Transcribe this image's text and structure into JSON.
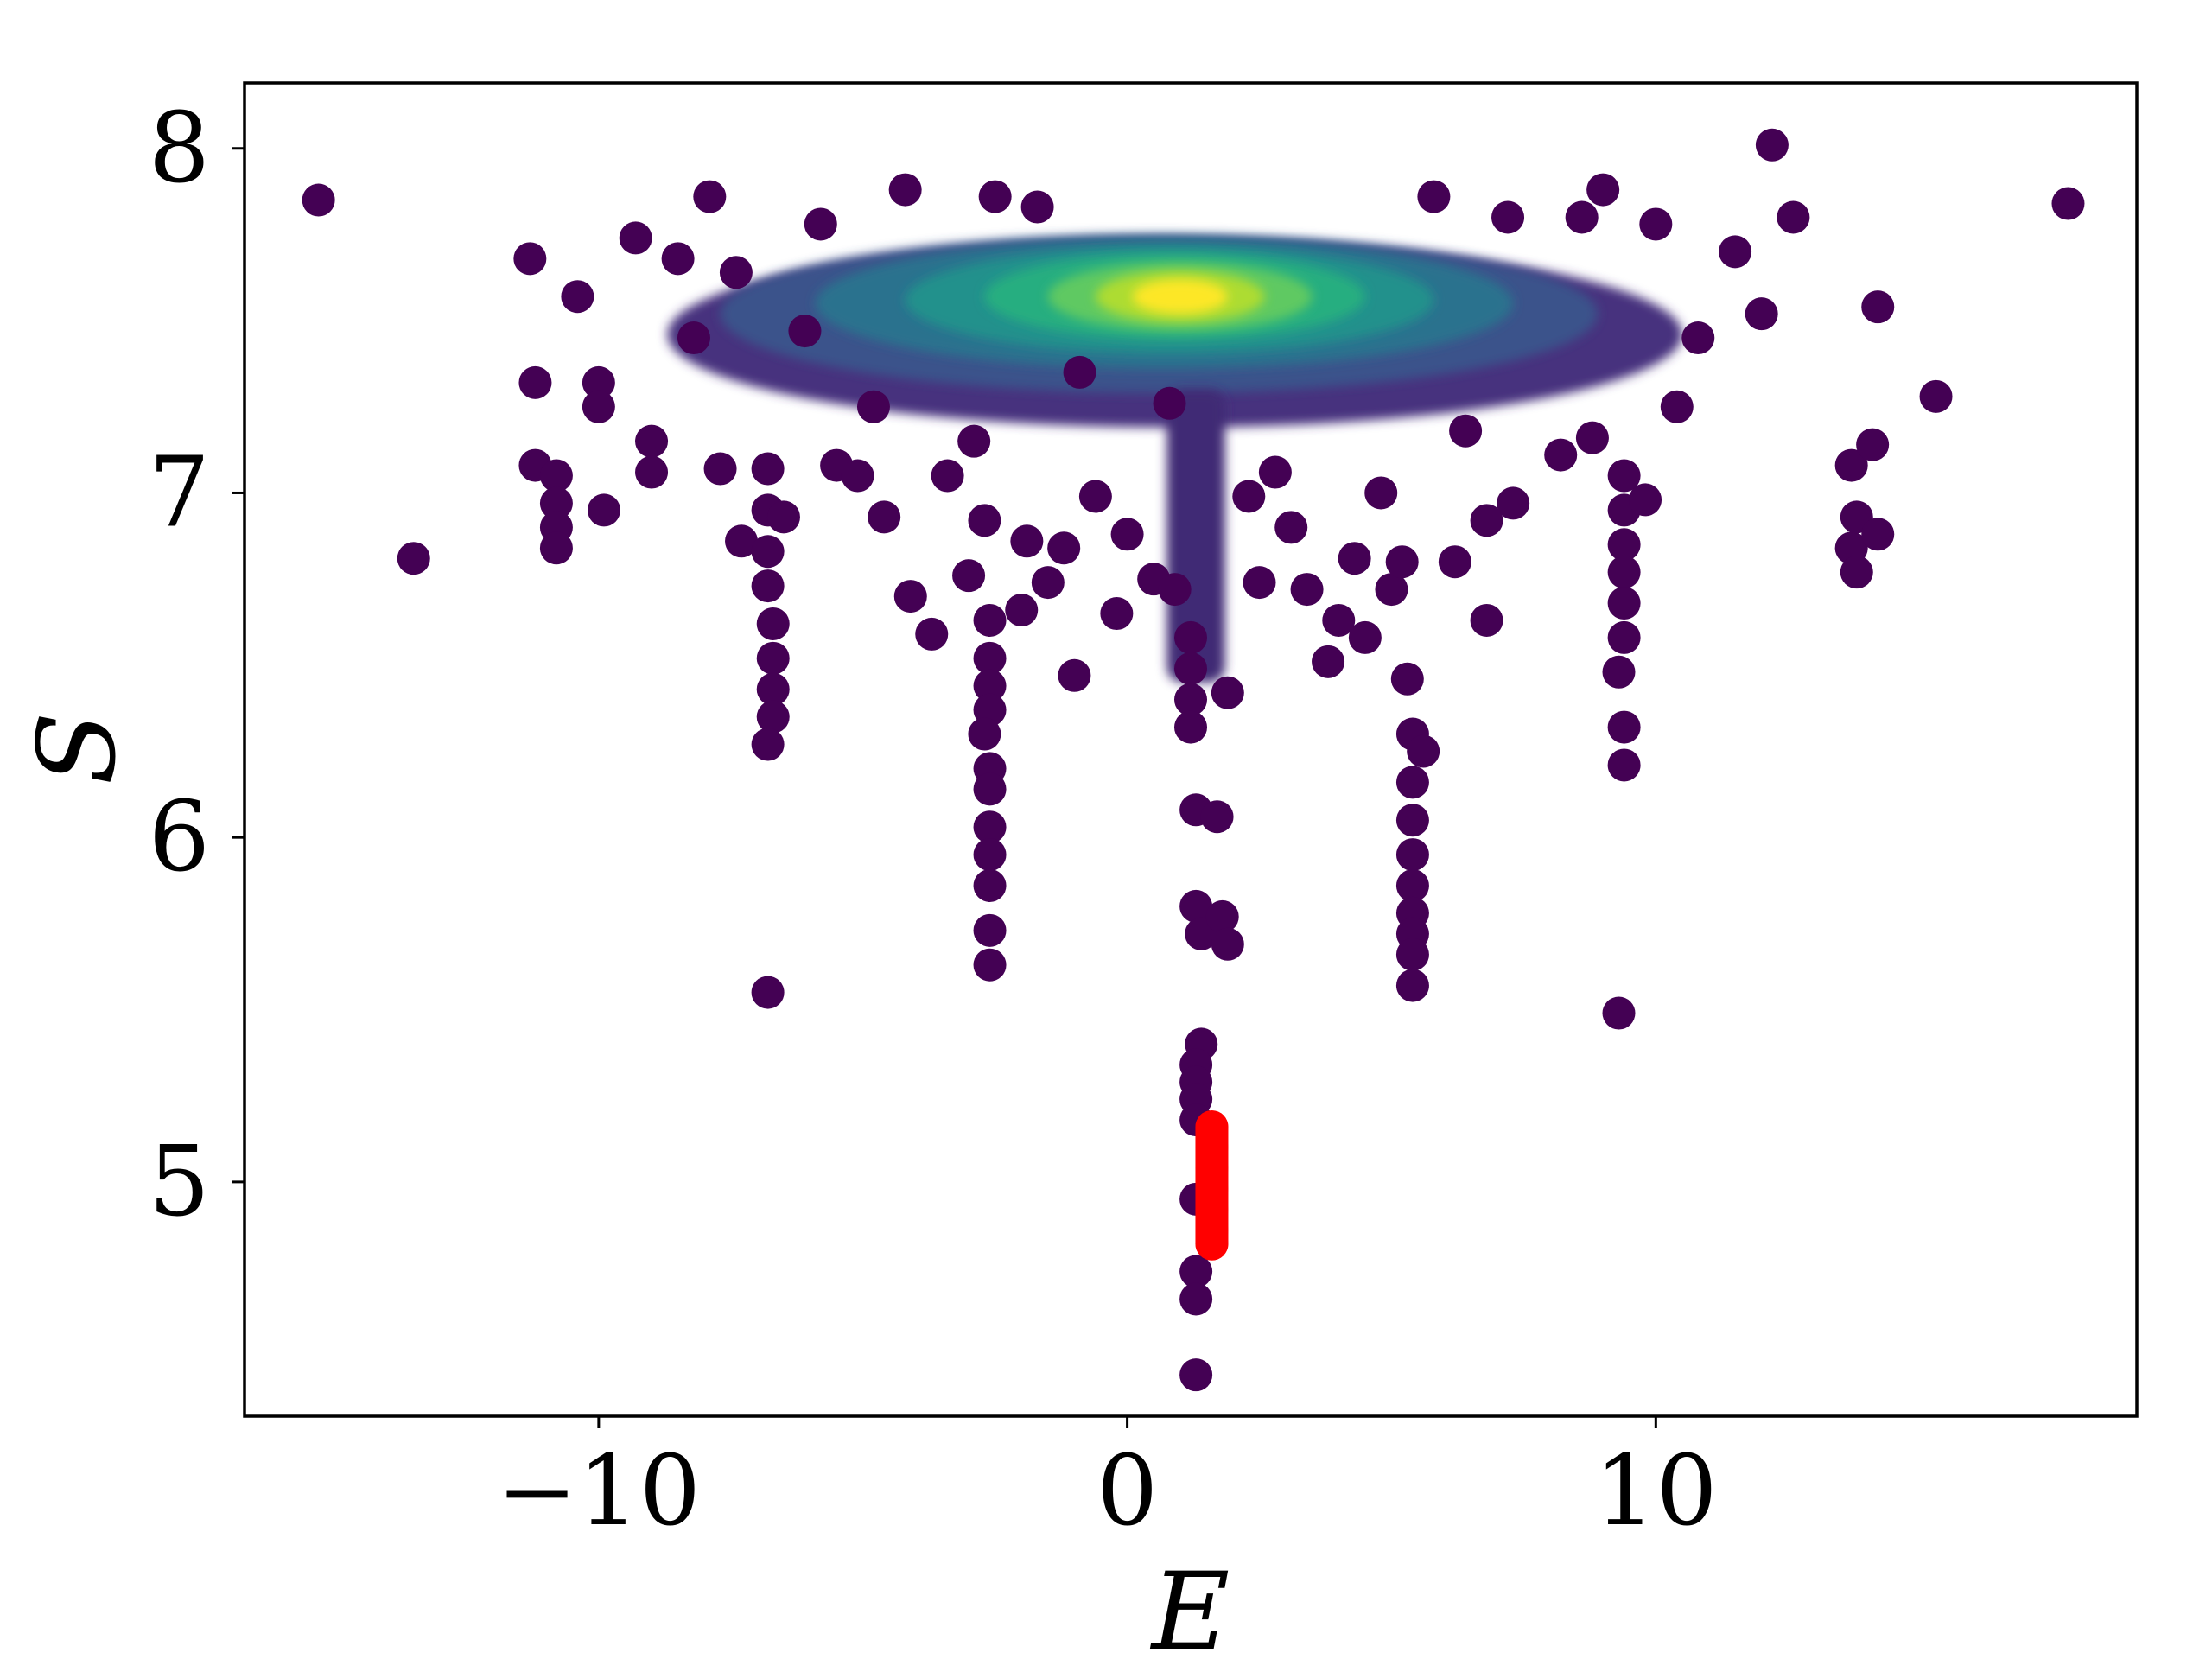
{
  "chart_data": {
    "type": "scatter",
    "title": "",
    "xlabel": "E",
    "ylabel": "S",
    "xlim": [
      -16.7,
      19.1
    ],
    "ylim": [
      4.32,
      8.19
    ],
    "xticks": [
      -10,
      0,
      10
    ],
    "xtick_labels": [
      "−10",
      "0",
      "10"
    ],
    "yticks": [
      5,
      6,
      7,
      8
    ],
    "ytick_labels": [
      "5",
      "6",
      "7",
      "8"
    ],
    "grid": false,
    "legend": "none",
    "colormap": "viridis",
    "colors": {
      "highlight": "#ff0000",
      "axis": "#000000",
      "background": "#ffffff"
    },
    "series": [
      {
        "values": [
          {
            "x": -15.3,
            "y": 7.85
          },
          {
            "x": -13.5,
            "y": 6.81
          },
          {
            "x": -11.3,
            "y": 7.68
          },
          {
            "x": -11.2,
            "y": 7.32
          },
          {
            "x": -11.2,
            "y": 7.08
          },
          {
            "x": -10.8,
            "y": 7.05
          },
          {
            "x": -10.8,
            "y": 6.97
          },
          {
            "x": -10.8,
            "y": 6.9
          },
          {
            "x": -10.8,
            "y": 6.84
          },
          {
            "x": -10.4,
            "y": 7.57
          },
          {
            "x": -10.0,
            "y": 7.32
          },
          {
            "x": -10.0,
            "y": 7.25
          },
          {
            "x": -9.9,
            "y": 6.95
          },
          {
            "x": -9.3,
            "y": 7.74
          },
          {
            "x": -9.0,
            "y": 7.15
          },
          {
            "x": -9.0,
            "y": 7.06
          },
          {
            "x": -8.5,
            "y": 7.68
          },
          {
            "x": -8.2,
            "y": 7.45
          },
          {
            "x": -7.9,
            "y": 7.86
          },
          {
            "x": -7.7,
            "y": 7.07
          },
          {
            "x": -7.4,
            "y": 7.64
          },
          {
            "x": -7.3,
            "y": 6.86
          },
          {
            "x": -6.8,
            "y": 7.07
          },
          {
            "x": -6.8,
            "y": 6.95
          },
          {
            "x": -6.8,
            "y": 6.83
          },
          {
            "x": -6.8,
            "y": 6.73
          },
          {
            "x": -6.7,
            "y": 6.62
          },
          {
            "x": -6.7,
            "y": 6.52
          },
          {
            "x": -6.7,
            "y": 6.43
          },
          {
            "x": -6.7,
            "y": 6.35
          },
          {
            "x": -6.8,
            "y": 6.27
          },
          {
            "x": -6.8,
            "y": 5.55
          },
          {
            "x": -6.5,
            "y": 6.93
          },
          {
            "x": -6.1,
            "y": 7.47
          },
          {
            "x": -5.8,
            "y": 7.78
          },
          {
            "x": -5.5,
            "y": 7.08
          },
          {
            "x": -5.1,
            "y": 7.05
          },
          {
            "x": -4.8,
            "y": 7.25
          },
          {
            "x": -4.6,
            "y": 6.93
          },
          {
            "x": -4.2,
            "y": 7.88
          },
          {
            "x": -4.1,
            "y": 6.7
          },
          {
            "x": -3.7,
            "y": 6.59
          },
          {
            "x": -3.4,
            "y": 7.05
          },
          {
            "x": -3.0,
            "y": 6.76
          },
          {
            "x": -2.9,
            "y": 7.15
          },
          {
            "x": -2.7,
            "y": 6.92
          },
          {
            "x": -2.6,
            "y": 6.63
          },
          {
            "x": -2.6,
            "y": 6.52
          },
          {
            "x": -2.6,
            "y": 6.44
          },
          {
            "x": -2.6,
            "y": 6.37
          },
          {
            "x": -2.7,
            "y": 6.3
          },
          {
            "x": -2.6,
            "y": 6.2
          },
          {
            "x": -2.6,
            "y": 6.14
          },
          {
            "x": -2.6,
            "y": 6.03
          },
          {
            "x": -2.6,
            "y": 5.95
          },
          {
            "x": -2.6,
            "y": 5.86
          },
          {
            "x": -2.6,
            "y": 5.73
          },
          {
            "x": -2.6,
            "y": 5.63
          },
          {
            "x": -2.5,
            "y": 7.86
          },
          {
            "x": -2.0,
            "y": 6.66
          },
          {
            "x": -1.9,
            "y": 6.86
          },
          {
            "x": -1.7,
            "y": 7.83
          },
          {
            "x": -1.5,
            "y": 6.74
          },
          {
            "x": -1.2,
            "y": 6.84
          },
          {
            "x": -1.0,
            "y": 6.47
          },
          {
            "x": -0.9,
            "y": 7.35
          },
          {
            "x": -0.6,
            "y": 6.99
          },
          {
            "x": -0.2,
            "y": 6.65
          },
          {
            "x": 0.0,
            "y": 6.88
          },
          {
            "x": 0.5,
            "y": 6.75
          },
          {
            "x": 0.8,
            "y": 7.26
          },
          {
            "x": 0.9,
            "y": 6.72
          },
          {
            "x": 1.2,
            "y": 6.58
          },
          {
            "x": 1.2,
            "y": 6.49
          },
          {
            "x": 1.2,
            "y": 6.4
          },
          {
            "x": 1.2,
            "y": 6.32
          },
          {
            "x": 1.3,
            "y": 6.08
          },
          {
            "x": 1.3,
            "y": 5.8
          },
          {
            "x": 1.4,
            "y": 5.72
          },
          {
            "x": 1.7,
            "y": 6.06
          },
          {
            "x": 1.8,
            "y": 5.77
          },
          {
            "x": 1.9,
            "y": 5.69
          },
          {
            "x": 1.9,
            "y": 6.42
          },
          {
            "x": 1.4,
            "y": 5.4
          },
          {
            "x": 1.3,
            "y": 5.34
          },
          {
            "x": 1.3,
            "y": 5.29
          },
          {
            "x": 1.3,
            "y": 5.24
          },
          {
            "x": 1.3,
            "y": 5.18
          },
          {
            "x": 1.3,
            "y": 4.95
          },
          {
            "x": 1.3,
            "y": 4.74
          },
          {
            "x": 1.3,
            "y": 4.66
          },
          {
            "x": 1.3,
            "y": 4.44
          },
          {
            "x": 2.3,
            "y": 6.99
          },
          {
            "x": 2.5,
            "y": 6.74
          },
          {
            "x": 2.8,
            "y": 7.06
          },
          {
            "x": 3.1,
            "y": 6.9
          },
          {
            "x": 3.4,
            "y": 6.72
          },
          {
            "x": 3.8,
            "y": 6.51
          },
          {
            "x": 4.0,
            "y": 6.63
          },
          {
            "x": 4.3,
            "y": 6.81
          },
          {
            "x": 4.5,
            "y": 6.58
          },
          {
            "x": 4.8,
            "y": 7.0
          },
          {
            "x": 5.0,
            "y": 6.72
          },
          {
            "x": 5.3,
            "y": 6.46
          },
          {
            "x": 5.4,
            "y": 6.3
          },
          {
            "x": 5.4,
            "y": 6.16
          },
          {
            "x": 5.4,
            "y": 6.05
          },
          {
            "x": 5.4,
            "y": 5.95
          },
          {
            "x": 5.4,
            "y": 5.86
          },
          {
            "x": 5.4,
            "y": 5.78
          },
          {
            "x": 5.4,
            "y": 5.72
          },
          {
            "x": 5.4,
            "y": 5.66
          },
          {
            "x": 5.4,
            "y": 5.57
          },
          {
            "x": 5.2,
            "y": 6.8
          },
          {
            "x": 5.6,
            "y": 6.25
          },
          {
            "x": 5.8,
            "y": 7.86
          },
          {
            "x": 6.2,
            "y": 6.8
          },
          {
            "x": 6.4,
            "y": 7.18
          },
          {
            "x": 6.8,
            "y": 6.92
          },
          {
            "x": 6.8,
            "y": 6.63
          },
          {
            "x": 7.2,
            "y": 7.8
          },
          {
            "x": 7.3,
            "y": 6.97
          },
          {
            "x": 8.2,
            "y": 7.11
          },
          {
            "x": 8.6,
            "y": 7.8
          },
          {
            "x": 8.8,
            "y": 7.16
          },
          {
            "x": 9.0,
            "y": 7.88
          },
          {
            "x": 9.4,
            "y": 7.05
          },
          {
            "x": 9.4,
            "y": 6.95
          },
          {
            "x": 9.4,
            "y": 6.85
          },
          {
            "x": 9.4,
            "y": 6.77
          },
          {
            "x": 9.4,
            "y": 6.68
          },
          {
            "x": 9.4,
            "y": 6.58
          },
          {
            "x": 9.3,
            "y": 6.48
          },
          {
            "x": 9.4,
            "y": 6.32
          },
          {
            "x": 9.4,
            "y": 6.21
          },
          {
            "x": 9.3,
            "y": 5.49
          },
          {
            "x": 9.8,
            "y": 6.98
          },
          {
            "x": 10.0,
            "y": 7.78
          },
          {
            "x": 10.4,
            "y": 7.25
          },
          {
            "x": 10.8,
            "y": 7.45
          },
          {
            "x": 11.5,
            "y": 7.7
          },
          {
            "x": 12.0,
            "y": 7.52
          },
          {
            "x": 12.2,
            "y": 8.01
          },
          {
            "x": 12.6,
            "y": 7.8
          },
          {
            "x": 13.7,
            "y": 7.08
          },
          {
            "x": 13.7,
            "y": 6.84
          },
          {
            "x": 13.8,
            "y": 6.77
          },
          {
            "x": 13.8,
            "y": 6.93
          },
          {
            "x": 14.1,
            "y": 7.14
          },
          {
            "x": 14.2,
            "y": 6.88
          },
          {
            "x": 14.2,
            "y": 7.54
          },
          {
            "x": 15.3,
            "y": 7.28
          },
          {
            "x": 17.8,
            "y": 7.84
          }
        ]
      },
      {
        "values": [
          {
            "x": 1.6,
            "y": 5.16
          },
          {
            "x": 1.6,
            "y": 5.1
          },
          {
            "x": 1.6,
            "y": 5.04
          },
          {
            "x": 1.6,
            "y": 4.98
          },
          {
            "x": 1.6,
            "y": 4.92
          },
          {
            "x": 1.6,
            "y": 4.86
          },
          {
            "x": 1.6,
            "y": 4.82
          }
        ]
      }
    ]
  }
}
